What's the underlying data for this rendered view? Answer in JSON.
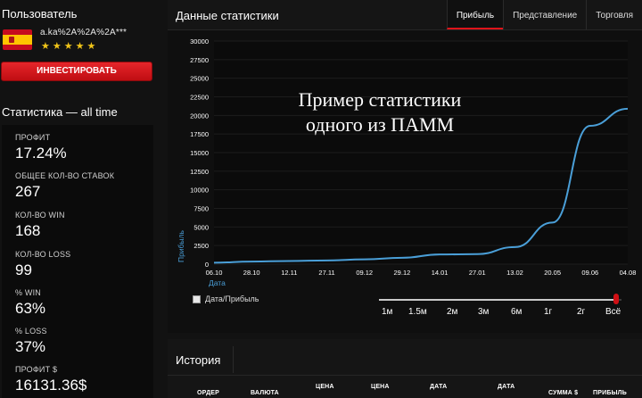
{
  "sidebar": {
    "section_title": "Пользователь",
    "flag_icon": "spain-flag-icon",
    "username": "a.ka%2A%2A%2A***",
    "rating_stars": 5,
    "rating_max": 5,
    "invest_button": "ИНВЕСТИРОВАТЬ",
    "stats_title": "Статистика — all time",
    "stats": [
      {
        "label": "ПРОФИТ",
        "value": "17.24%"
      },
      {
        "label": "ОБЩЕЕ КОЛ-ВО СТАВОК",
        "value": "267"
      },
      {
        "label": "КОЛ-ВО WIN",
        "value": "168"
      },
      {
        "label": "КОЛ-ВО LOSS",
        "value": "99"
      },
      {
        "label": "% WIN",
        "value": "63%"
      },
      {
        "label": "% LOSS",
        "value": "37%"
      },
      {
        "label": "ПРОФИТ $",
        "value": "16131.36$"
      }
    ]
  },
  "main": {
    "title": "Данные статистики",
    "tabs": [
      {
        "label": "Прибыль",
        "active": true
      },
      {
        "label": "Представление",
        "active": false
      },
      {
        "label": "Торговля",
        "active": false
      }
    ],
    "watermark_line1": "Пример статистики",
    "watermark_line2": "одного из ПАММ",
    "checkbox_label": "Дата/Прибыль",
    "periods": [
      "1м",
      "1.5м",
      "2м",
      "3м",
      "6м",
      "1г",
      "2г",
      "Всё"
    ],
    "accent_color": "#e0141a",
    "line_color": "#4a9fd8"
  },
  "chart_data": {
    "type": "line",
    "xlabel": "Дата",
    "ylabel": "Прибыль",
    "ylim": [
      0,
      30000
    ],
    "yticks": [
      0,
      2500,
      5000,
      7500,
      10000,
      12500,
      15000,
      17500,
      20000,
      22500,
      25000,
      27500,
      30000
    ],
    "xticks": [
      "06.10",
      "28.10",
      "12.11",
      "27.11",
      "09.12",
      "29.12",
      "14.01",
      "27.01",
      "13.02",
      "20.05",
      "09.06",
      "04.08"
    ],
    "series": [
      {
        "x": [
          "06.10",
          "28.10",
          "12.11",
          "27.11",
          "09.12",
          "29.12",
          "14.01",
          "27.01",
          "13.02",
          "20.05",
          "09.06",
          "04.08"
        ],
        "values": [
          200,
          350,
          420,
          500,
          650,
          850,
          1300,
          1350,
          2300,
          5600,
          18600,
          20900
        ]
      }
    ]
  },
  "history": {
    "title": "История",
    "columns": [
      "ОРДЕР",
      "ВАЛЮТА",
      "ЦЕНА",
      "ЦЕНА",
      "ДАТА",
      "ДАТА",
      "СУММА $",
      "ПРИБЫЛЬ"
    ]
  }
}
